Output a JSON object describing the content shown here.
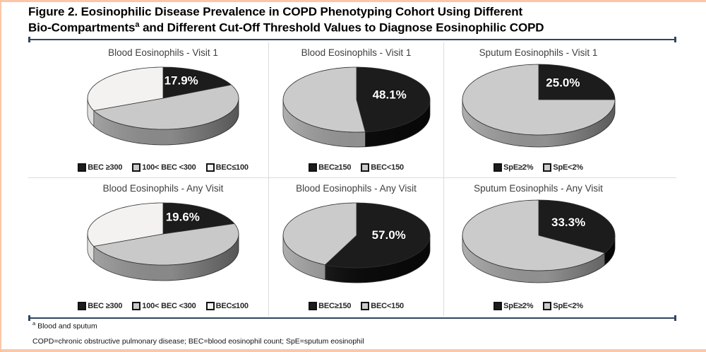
{
  "header": {
    "line1": "Figure 2. Eosinophilic Disease Prevalence in COPD Phenotyping Cohort Using Different",
    "line2_pre": "Bio-Compartments",
    "sup": "a",
    "line2_post": " and Different Cut-Off Threshold Values to Diagnose Eosinophilic COPD"
  },
  "footnotes": {
    "sup": "a",
    "note": " Blood and sputum",
    "abbreviations": "COPD=chronic obstructive pulmonary disease; BEC=blood eosinophil count; SpE=sputum eosinophil"
  },
  "colors": {
    "accent_border": "#fbc7a8",
    "rule": "#2f4660",
    "panel_divider": "#dcdcdc",
    "slice_black": "#1c1c1c",
    "slice_gray": "#c9c9c9",
    "slice_white": "#f3f2f1"
  },
  "chart_data": [
    {
      "type": "pie",
      "title": "Blood Eosinophils - Visit 1",
      "labels": [
        "BEC ≥300",
        "100< BEC <300",
        "BEC≤100"
      ],
      "values": [
        17.9,
        50.6,
        31.5
      ],
      "colors": [
        "#1c1c1c",
        "#c9c9c9",
        "#f3f2f1"
      ],
      "side_colors": [
        "#0c0c0c",
        "#909090",
        "#dddcdb"
      ],
      "callout": "17.9%",
      "callout_slice": 0,
      "legend_position": "bottom"
    },
    {
      "type": "pie",
      "title": "Blood Eosinophils - Visit 1",
      "labels": [
        "BEC≥150",
        "BEC<150"
      ],
      "values": [
        48.1,
        51.9
      ],
      "colors": [
        "#1c1c1c",
        "#cbcbcb"
      ],
      "side_colors": [
        "#0c0c0c",
        "#989898"
      ],
      "callout": "48.1%",
      "callout_slice": 0,
      "legend_position": "bottom"
    },
    {
      "type": "pie",
      "title": "Sputum Eosinophils - Visit 1",
      "labels": [
        "SpE≥2%",
        "SpE<2%"
      ],
      "values": [
        25.0,
        75.0
      ],
      "colors": [
        "#1c1c1c",
        "#cbcbcb"
      ],
      "side_colors": [
        "#0c0c0c",
        "#989898"
      ],
      "callout": "25.0%",
      "callout_slice": 0,
      "legend_position": "bottom"
    },
    {
      "type": "pie",
      "title": "Blood Eosinophils - Any Visit",
      "labels": [
        "BEC ≥300",
        "100< BEC <300",
        "BEC≤100"
      ],
      "values": [
        19.6,
        48.9,
        31.5
      ],
      "colors": [
        "#1c1c1c",
        "#c9c9c9",
        "#f3f2f1"
      ],
      "side_colors": [
        "#0c0c0c",
        "#909090",
        "#dddcdb"
      ],
      "callout": "19.6%",
      "callout_slice": 0,
      "legend_position": "bottom"
    },
    {
      "type": "pie",
      "title": "Blood Eosinophils - Any Visit",
      "labels": [
        "BEC≥150",
        "BEC<150"
      ],
      "values": [
        57.0,
        43.0
      ],
      "colors": [
        "#1c1c1c",
        "#cbcbcb"
      ],
      "side_colors": [
        "#0c0c0c",
        "#989898"
      ],
      "callout": "57.0%",
      "callout_slice": 0,
      "legend_position": "bottom"
    },
    {
      "type": "pie",
      "title": "Sputum Eosinophils - Any Visit",
      "labels": [
        "SpE≥2%",
        "SpE<2%"
      ],
      "values": [
        33.3,
        66.7
      ],
      "colors": [
        "#1c1c1c",
        "#cbcbcb"
      ],
      "side_colors": [
        "#0c0c0c",
        "#989898"
      ],
      "callout": "33.3%",
      "callout_slice": 0,
      "legend_position": "bottom"
    }
  ]
}
